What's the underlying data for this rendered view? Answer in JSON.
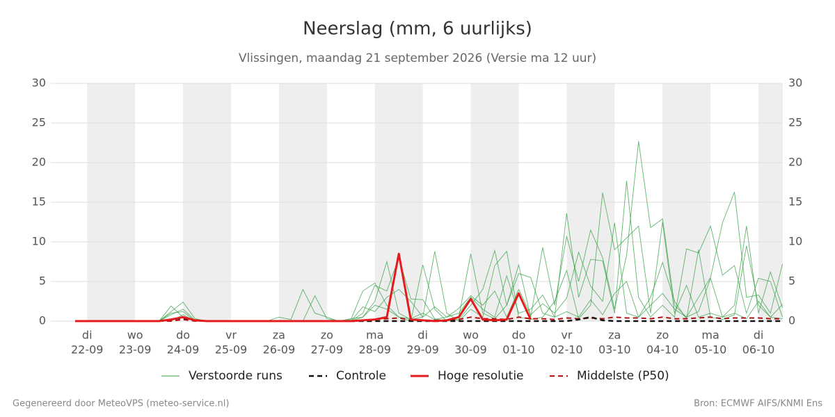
{
  "chart_data": {
    "type": "line",
    "title": "Neerslag (mm, 6 uurlijks)",
    "subtitle": "Vlissingen, maandag 21 september 2026 (Versie ma 12 uur)",
    "categories": [
      null,
      "22-09",
      null,
      null,
      null,
      "23-09",
      null,
      null,
      null,
      "24-09",
      null,
      null,
      null,
      "25-09",
      null,
      null,
      null,
      "26-09",
      null,
      null,
      null,
      "27-09",
      null,
      null,
      null,
      "28-09",
      null,
      null,
      null,
      "29-09",
      null,
      null,
      null,
      "30-09",
      null,
      null,
      null,
      "01-10",
      null,
      null,
      null,
      "02-10",
      null,
      null,
      null,
      "03-10",
      null,
      null,
      null,
      "04-10",
      null,
      null,
      null,
      "05-10",
      null,
      null,
      null,
      "06-10",
      null,
      null
    ],
    "weekdays": [
      null,
      "di",
      null,
      null,
      null,
      "wo",
      null,
      null,
      null,
      "do",
      null,
      null,
      null,
      "vr",
      null,
      null,
      null,
      "za",
      null,
      null,
      null,
      "zo",
      null,
      null,
      null,
      "ma",
      null,
      null,
      null,
      "di",
      null,
      null,
      null,
      "wo",
      null,
      null,
      null,
      "do",
      null,
      null,
      null,
      "vr",
      null,
      null,
      null,
      "za",
      null,
      null,
      null,
      "zo",
      null,
      null,
      null,
      "ma",
      null,
      null,
      null,
      "di",
      null,
      null
    ],
    "ylim": [
      0,
      30
    ],
    "yticks": [
      0,
      5,
      10,
      15,
      20,
      25,
      30
    ],
    "grid": true,
    "ensemble": {
      "name": "Verstoorde runs",
      "color": "#2e9e3e",
      "members": [
        [
          0,
          0,
          0,
          0,
          0,
          0,
          0,
          0,
          1.2,
          2.4,
          0.3,
          0,
          0,
          0,
          0,
          0,
          0,
          0.5,
          0.2,
          4.0,
          1.0,
          0.5,
          0,
          0.2,
          3.8,
          4.8,
          2.0,
          0.5,
          0,
          7.1,
          1.5,
          0,
          0.5,
          8.5,
          1.0,
          0.3,
          2.0,
          6.0,
          5.5,
          1.0,
          0.5,
          13.6,
          3.0,
          7.8,
          7.6,
          1.0,
          17.7,
          3.0,
          0.5,
          2.0,
          0.5,
          9.1,
          8.6,
          12.0,
          5.8,
          7.0,
          1.0,
          5.4,
          5.0,
          0.5
        ],
        [
          0,
          0,
          0,
          0,
          0,
          0,
          0,
          0,
          0.8,
          1.5,
          0.1,
          0,
          0,
          0,
          0,
          0,
          0,
          0,
          0,
          0,
          3.2,
          0.3,
          0,
          0,
          1.0,
          4.5,
          3.8,
          8.0,
          2.8,
          2.7,
          0.3,
          0,
          0.2,
          2.0,
          4.0,
          8.9,
          2.0,
          7.1,
          0.5,
          9.3,
          2.0,
          10.7,
          5.0,
          11.5,
          8.0,
          1.5,
          8.3,
          22.7,
          11.8,
          12.9,
          2.0,
          0.5,
          3.0,
          5.5,
          12.4,
          16.3,
          3.0,
          3.3,
          1.0,
          7.2
        ],
        [
          0,
          0,
          0,
          0,
          0,
          0,
          0,
          0,
          1.9,
          0.5,
          0,
          0,
          0,
          0,
          0,
          0,
          0,
          0,
          0,
          0,
          0,
          0,
          0,
          0.3,
          0.5,
          2.5,
          7.5,
          1.0,
          0.2,
          0.5,
          8.8,
          1.0,
          0,
          1.5,
          0.5,
          7.0,
          8.8,
          0.5,
          0.2,
          0.5,
          2.5,
          6.4,
          0.3,
          2.0,
          16.2,
          9.0,
          10.5,
          12.0,
          1.0,
          12.5,
          1.0,
          4.5,
          0.5,
          1.0,
          0.5,
          2.0,
          12.0,
          1.0,
          6.2,
          1.7
        ],
        [
          0,
          0,
          0,
          0,
          0,
          0,
          0,
          0,
          1.0,
          1.2,
          0,
          0,
          0,
          0,
          0,
          0,
          0,
          0,
          0,
          0,
          0,
          0,
          0,
          0,
          1.8,
          1.2,
          3.0,
          4.0,
          2.5,
          0.5,
          1.8,
          0.5,
          1.6,
          3.2,
          2.0,
          3.8,
          0.5,
          4.0,
          0.8,
          2.2,
          1.0,
          2.9,
          8.7,
          4.4,
          2.5,
          12.4,
          1.0,
          0.5,
          3.0,
          7.4,
          2.5,
          0.3,
          9.0,
          0.5,
          0.2,
          0.8,
          9.5,
          2.0,
          0.5,
          0.3
        ],
        [
          0,
          0,
          0,
          0,
          0,
          0,
          0,
          0,
          0,
          0.8,
          0,
          0,
          0,
          0,
          0,
          0,
          0,
          0,
          0,
          0,
          0,
          0,
          0,
          0,
          0.5,
          2.0,
          1.5,
          0.5,
          0.3,
          1.0,
          0.2,
          0.5,
          1.0,
          3.0,
          1.5,
          0.5,
          5.7,
          1.0,
          1.5,
          3.3,
          0.5,
          1.2,
          0.5,
          2.7,
          0.8,
          3.5,
          5.0,
          0.5,
          2.0,
          3.5,
          1.5,
          0.5,
          1.2,
          5.4,
          0.5,
          1.0,
          0.3,
          2.5,
          0.5,
          2.1
        ]
      ]
    },
    "series": [
      {
        "name": "Controle",
        "color": "#111111",
        "dash": true,
        "width": 2.5,
        "values": [
          0,
          0,
          0,
          0,
          0,
          0,
          0,
          0,
          0.2,
          0.4,
          0.1,
          0,
          0,
          0,
          0,
          0,
          0,
          0,
          0,
          0,
          0,
          0,
          0,
          0,
          0,
          0,
          0,
          0,
          0,
          0,
          0,
          0,
          0,
          0,
          0,
          0,
          0,
          0,
          0,
          0,
          0,
          0,
          0.2,
          0.5,
          0.1,
          0,
          0,
          0,
          0,
          0,
          0,
          0,
          0,
          0,
          0,
          0,
          0,
          0,
          0,
          0
        ]
      },
      {
        "name": "Hoge resolutie",
        "color": "#e41a1c",
        "dash": false,
        "width": 3,
        "values": [
          0,
          0,
          0,
          0,
          0,
          0,
          0,
          0,
          0.2,
          0.5,
          0.1,
          0,
          0,
          0,
          0,
          0,
          0,
          0,
          0,
          0,
          0,
          0,
          0,
          0,
          0.1,
          0.2,
          0.5,
          8.5,
          0.2,
          0.1,
          0,
          0.1,
          0.5,
          2.8,
          0.2,
          0.1,
          0.2,
          3.5,
          0.2,
          null,
          null,
          null,
          null,
          null,
          null,
          null,
          null,
          null,
          null,
          null,
          null,
          null,
          null,
          null,
          null,
          null,
          null,
          null,
          null,
          null
        ]
      },
      {
        "name": "Middelste (P50)",
        "color": "#b01010",
        "dash": true,
        "width": 2,
        "values": [
          0,
          0,
          0,
          0,
          0,
          0,
          0,
          0,
          0,
          0.2,
          0,
          0,
          0,
          0,
          0,
          0,
          0,
          0,
          0,
          0,
          0,
          0,
          0,
          0,
          0,
          0.2,
          0.3,
          0.4,
          0.1,
          0.1,
          0.1,
          0.1,
          0.2,
          0.5,
          0.3,
          0.3,
          0.2,
          0.5,
          0.3,
          0.3,
          0.2,
          0.4,
          0.3,
          0.4,
          0.3,
          0.5,
          0.4,
          0.4,
          0.3,
          0.5,
          0.3,
          0.3,
          0.4,
          0.5,
          0.3,
          0.4,
          0.4,
          0.4,
          0.3,
          0.3
        ]
      }
    ],
    "footer_left": "Gegenereerd door MeteoVPS (meteo-service.nl)",
    "footer_right": "Bron: ECMWF AIFS/KNMI Ens"
  }
}
